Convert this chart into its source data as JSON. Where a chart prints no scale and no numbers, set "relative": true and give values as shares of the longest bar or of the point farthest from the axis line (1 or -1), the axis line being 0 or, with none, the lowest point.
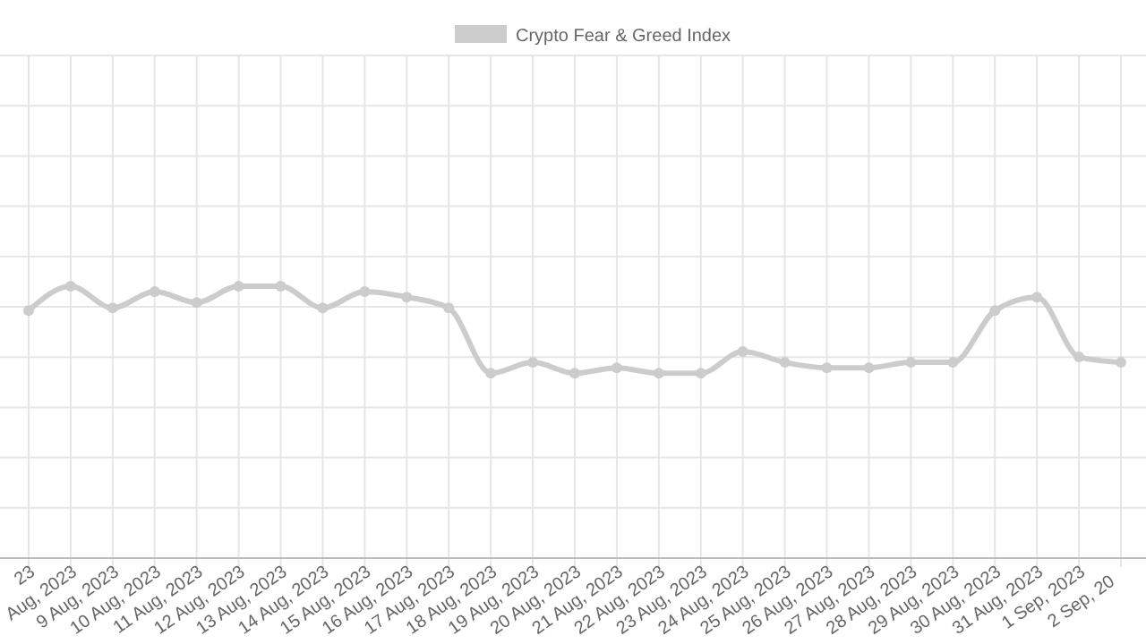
{
  "chart_data": {
    "type": "line",
    "relative": true,
    "grid": true,
    "legend": "top",
    "marker": "circle",
    "line_style": "solid",
    "categories": [
      "23",
      "Aug, 2023",
      "9 Aug, 2023",
      "10 Aug, 2023",
      "11 Aug, 2023",
      "12 Aug, 2023",
      "13 Aug, 2023",
      "14 Aug, 2023",
      "15 Aug, 2023",
      "16 Aug, 2023",
      "17 Aug, 2023",
      "18 Aug, 2023",
      "19 Aug, 2023",
      "20 Aug, 2023",
      "21 Aug, 2023",
      "22 Aug, 2023",
      "23 Aug, 2023",
      "24 Aug, 2023",
      "25 Aug, 2023",
      "26 Aug, 2023",
      "27 Aug, 2023",
      "28 Aug, 2023",
      "29 Aug, 2023",
      "30 Aug, 2023",
      "31 Aug, 2023",
      "1 Sep, 2023",
      "2 Sep, 20"
    ],
    "series": [
      {
        "name": "Crypto Fear & Greed Index",
        "color": "#cccccc",
        "values": [
          0.91,
          1,
          0.92,
          0.98,
          0.94,
          1,
          1,
          0.92,
          0.98,
          0.96,
          0.92,
          0.68,
          0.72,
          0.68,
          0.7,
          0.68,
          0.68,
          0.76,
          0.72,
          0.7,
          0.7,
          0.72,
          0.72,
          0.91,
          0.96,
          0.74,
          0.72
        ]
      }
    ]
  }
}
